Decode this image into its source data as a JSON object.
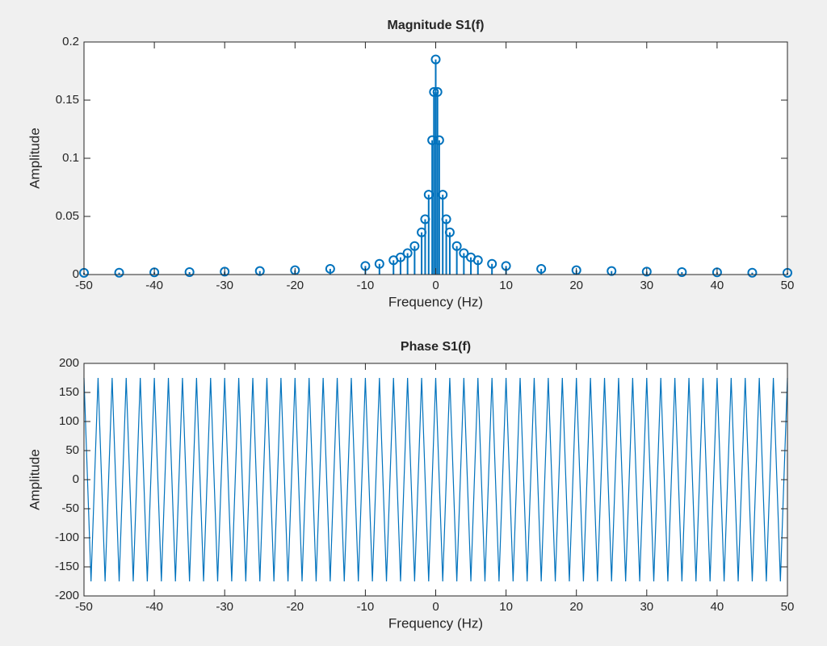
{
  "chart_data": [
    {
      "type": "stem",
      "title": "Magnitude S1(f)",
      "x_label": "Frequency (Hz)",
      "y_label": "Amplitude",
      "color": "#0072bd",
      "x": [
        -50,
        -45,
        -40,
        -35,
        -30,
        -25,
        -20,
        -15,
        -10,
        -8,
        -6,
        -5,
        -4,
        -3,
        -2,
        -1.5,
        -1,
        -0.5,
        -0.25,
        0,
        0.25,
        0.5,
        1,
        1.5,
        2,
        3,
        4,
        5,
        6,
        8,
        10,
        15,
        20,
        25,
        30,
        35,
        40,
        45,
        50
      ],
      "values": [
        0.0015,
        0.0016,
        0.0019,
        0.0021,
        0.0025,
        0.003,
        0.0037,
        0.0049,
        0.0074,
        0.0092,
        0.0123,
        0.0148,
        0.0184,
        0.0245,
        0.0363,
        0.0476,
        0.0687,
        0.1155,
        0.157,
        0.185,
        0.157,
        0.1155,
        0.0687,
        0.0476,
        0.0363,
        0.0245,
        0.0184,
        0.0148,
        0.0123,
        0.0092,
        0.0074,
        0.0049,
        0.0037,
        0.003,
        0.0025,
        0.0021,
        0.0019,
        0.0016,
        0.0015
      ],
      "xlim": [
        -50,
        50
      ],
      "xticks": [
        -50,
        -40,
        -30,
        -20,
        -10,
        0,
        10,
        20,
        30,
        40,
        50
      ],
      "ylim": [
        0,
        0.2
      ],
      "yticks": [
        0,
        0.05,
        0.1,
        0.15,
        0.2
      ]
    },
    {
      "type": "line",
      "title": "Phase S1(f)",
      "x_label": "Frequency (Hz)",
      "y_label": "Amplitude",
      "color": "#0072bd",
      "x": [
        -50,
        -49,
        -48,
        -47,
        -46,
        -45,
        -44,
        -43,
        -42,
        -41,
        -40,
        -39,
        -38,
        -37,
        -36,
        -35,
        -34,
        -33,
        -32,
        -31,
        -30,
        -29,
        -28,
        -27,
        -26,
        -25,
        -24,
        -23,
        -22,
        -21,
        -20,
        -19,
        -18,
        -17,
        -16,
        -15,
        -14,
        -13,
        -12,
        -11,
        -10,
        -9,
        -8,
        -7,
        -6,
        -5,
        -4,
        -3,
        -2,
        -1,
        0,
        1,
        2,
        3,
        4,
        5,
        6,
        7,
        8,
        9,
        10,
        11,
        12,
        13,
        14,
        15,
        16,
        17,
        18,
        19,
        20,
        21,
        22,
        23,
        24,
        25,
        26,
        27,
        28,
        29,
        30,
        31,
        32,
        33,
        34,
        35,
        36,
        37,
        38,
        39,
        40,
        41,
        42,
        43,
        44,
        45,
        46,
        47,
        48,
        49,
        50
      ],
      "values": [
        175,
        -175,
        175,
        -175,
        175,
        -175,
        175,
        -175,
        175,
        -175,
        175,
        -175,
        175,
        -175,
        175,
        -175,
        175,
        -175,
        175,
        -175,
        175,
        -175,
        175,
        -175,
        175,
        -175,
        175,
        -175,
        175,
        -175,
        175,
        -175,
        175,
        -175,
        175,
        -175,
        175,
        -175,
        175,
        -175,
        175,
        -175,
        175,
        -175,
        175,
        -175,
        175,
        -175,
        175,
        -175,
        175,
        -175,
        175,
        -175,
        175,
        -175,
        175,
        -175,
        175,
        -175,
        175,
        -175,
        175,
        -175,
        175,
        -175,
        175,
        -175,
        175,
        -175,
        175,
        -175,
        175,
        -175,
        175,
        -175,
        175,
        -175,
        175,
        -175,
        175,
        -175,
        175,
        -175,
        175,
        -175,
        175,
        -175,
        175,
        -175,
        175,
        -175,
        175,
        -175,
        175,
        -175,
        175,
        -175,
        175,
        -175,
        175
      ],
      "xlim": [
        -50,
        50
      ],
      "xticks": [
        -50,
        -40,
        -30,
        -20,
        -10,
        0,
        10,
        20,
        30,
        40,
        50
      ],
      "ylim": [
        -200,
        200
      ],
      "yticks": [
        -200,
        -150,
        -100,
        -50,
        0,
        50,
        100,
        150,
        200
      ]
    }
  ]
}
